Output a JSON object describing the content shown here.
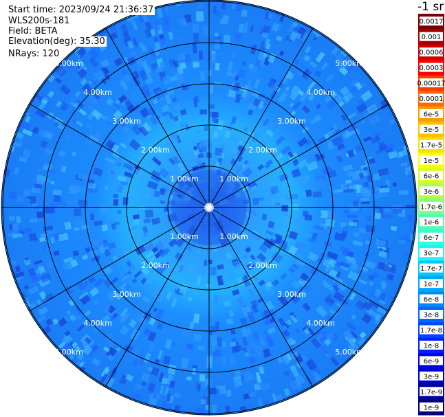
{
  "header": {
    "start_time": "Start time: 2023/09/24 21:36:37",
    "instrument": "WLS200s-181",
    "field": "Field: BETA",
    "elevation": "Elevation(deg): 35.30",
    "nrays": "NRays: 120"
  },
  "colorbar": {
    "unit": "-1 sr",
    "labels": [
      "0.0017",
      "0.001",
      "0.0006",
      "0.0003",
      "0.00017",
      "0.0001",
      "6e-5",
      "3e-5",
      "1.7e-5",
      "1e-5",
      "6e-6",
      "3e-6",
      "1.7e-6",
      "1e-6",
      "6e-7",
      "3e-7",
      "1.7e-7",
      "1e-7",
      "6e-8",
      "3e-8",
      "1.7e-8",
      "1e-8",
      "6e-9",
      "3e-9",
      "1.7e-9",
      "1e-9"
    ],
    "colors": [
      "#7a0000",
      "#a80000",
      "#d00000",
      "#ff0000",
      "#ff3a00",
      "#ff6a00",
      "#ff9a00",
      "#ffc000",
      "#ffe000",
      "#ffff00",
      "#d8ff20",
      "#b0ff50",
      "#80ff80",
      "#50ffb0",
      "#30ffd8",
      "#20f0ff",
      "#00c8ff",
      "#00a8ff",
      "#0088ff",
      "#0068ff",
      "#0048ff",
      "#0020ff",
      "#0000f0",
      "#0000c8",
      "#0000a0",
      "#000078"
    ]
  },
  "chart_data": {
    "type": "heatmap",
    "projection": "polar (plan position indicator)",
    "field": "BETA",
    "range_rings_km": [
      1,
      2,
      3,
      4,
      5
    ],
    "ring_labels": [
      "1.00km",
      "2.00km",
      "3.00km",
      "4.00km",
      "5.00km"
    ],
    "rays": 120,
    "radial_lines": 12,
    "value_range": [
      1e-09,
      0.0017
    ],
    "scale": "log",
    "approx_value_near_center": "1e-8",
    "approx_value_ring_1_to_3km": "1e-7",
    "approx_value_beyond_3km": "1.7e-8 to 6e-8"
  }
}
